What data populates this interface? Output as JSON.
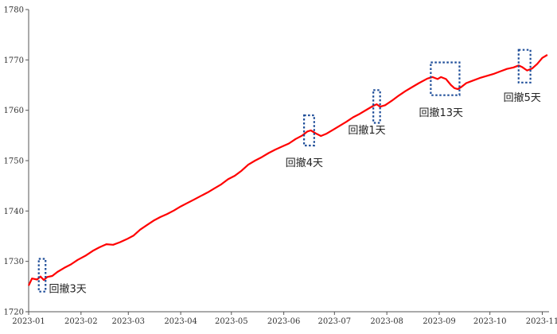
{
  "chart_data": {
    "type": "line",
    "title": "",
    "xlabel": "",
    "ylabel": "",
    "ylim": [
      1720,
      1780
    ],
    "yticks": [
      1720,
      1730,
      1740,
      1750,
      1760,
      1770,
      1780
    ],
    "xlim": [
      "2023-01-01",
      "2023-11-05"
    ],
    "xticks": [
      "2023-01",
      "2023-02",
      "2023-03",
      "2023-04",
      "2023-05",
      "2023-06",
      "2023-07",
      "2023-08",
      "2023-09",
      "2023-10",
      "2023-11"
    ],
    "grid": false,
    "legend": "none",
    "colors": {
      "line": "#ff0000",
      "box": "#1f4e99",
      "axis": "#555555"
    },
    "series": [
      {
        "points": [
          [
            "2023-01-01",
            1725.2
          ],
          [
            "2023-01-03",
            1726.6
          ],
          [
            "2023-01-06",
            1726.4
          ],
          [
            "2023-01-08",
            1727.0
          ],
          [
            "2023-01-10",
            1726.3
          ],
          [
            "2023-01-12",
            1726.9
          ],
          [
            "2023-01-15",
            1727.1
          ],
          [
            "2023-01-18",
            1727.9
          ],
          [
            "2023-01-22",
            1728.7
          ],
          [
            "2023-01-26",
            1729.4
          ],
          [
            "2023-01-30",
            1730.3
          ],
          [
            "2023-02-04",
            1731.2
          ],
          [
            "2023-02-08",
            1732.1
          ],
          [
            "2023-02-12",
            1732.8
          ],
          [
            "2023-02-16",
            1733.4
          ],
          [
            "2023-02-20",
            1733.3
          ],
          [
            "2023-02-24",
            1733.8
          ],
          [
            "2023-02-28",
            1734.4
          ],
          [
            "2023-03-04",
            1735.1
          ],
          [
            "2023-03-08",
            1736.3
          ],
          [
            "2023-03-12",
            1737.2
          ],
          [
            "2023-03-16",
            1738.1
          ],
          [
            "2023-03-20",
            1738.8
          ],
          [
            "2023-03-24",
            1739.4
          ],
          [
            "2023-03-28",
            1740.1
          ],
          [
            "2023-04-01",
            1740.9
          ],
          [
            "2023-04-05",
            1741.6
          ],
          [
            "2023-04-09",
            1742.3
          ],
          [
            "2023-04-13",
            1743.0
          ],
          [
            "2023-04-17",
            1743.7
          ],
          [
            "2023-04-21",
            1744.5
          ],
          [
            "2023-04-25",
            1745.3
          ],
          [
            "2023-04-29",
            1746.3
          ],
          [
            "2023-05-03",
            1747.0
          ],
          [
            "2023-05-07",
            1748.0
          ],
          [
            "2023-05-11",
            1749.2
          ],
          [
            "2023-05-15",
            1750.0
          ],
          [
            "2023-05-19",
            1750.7
          ],
          [
            "2023-05-23",
            1751.5
          ],
          [
            "2023-05-27",
            1752.2
          ],
          [
            "2023-05-31",
            1752.8
          ],
          [
            "2023-06-04",
            1753.4
          ],
          [
            "2023-06-08",
            1754.3
          ],
          [
            "2023-06-12",
            1755.0
          ],
          [
            "2023-06-15",
            1755.8
          ],
          [
            "2023-06-17",
            1756.0
          ],
          [
            "2023-06-20",
            1755.4
          ],
          [
            "2023-06-23",
            1754.9
          ],
          [
            "2023-06-26",
            1755.3
          ],
          [
            "2023-06-30",
            1756.1
          ],
          [
            "2023-07-04",
            1756.9
          ],
          [
            "2023-07-08",
            1757.7
          ],
          [
            "2023-07-12",
            1758.6
          ],
          [
            "2023-07-16",
            1759.3
          ],
          [
            "2023-07-20",
            1760.1
          ],
          [
            "2023-07-24",
            1760.9
          ],
          [
            "2023-07-26",
            1761.2
          ],
          [
            "2023-07-28",
            1760.7
          ],
          [
            "2023-07-31",
            1761.0
          ],
          [
            "2023-08-04",
            1761.9
          ],
          [
            "2023-08-08",
            1762.9
          ],
          [
            "2023-08-12",
            1763.8
          ],
          [
            "2023-08-16",
            1764.6
          ],
          [
            "2023-08-20",
            1765.4
          ],
          [
            "2023-08-25",
            1766.3
          ],
          [
            "2023-08-28",
            1766.6
          ],
          [
            "2023-08-31",
            1766.2
          ],
          [
            "2023-09-02",
            1766.6
          ],
          [
            "2023-09-05",
            1766.2
          ],
          [
            "2023-09-08",
            1765.0
          ],
          [
            "2023-09-10",
            1764.4
          ],
          [
            "2023-09-12",
            1764.2
          ],
          [
            "2023-09-14",
            1764.6
          ],
          [
            "2023-09-17",
            1765.4
          ],
          [
            "2023-09-21",
            1765.9
          ],
          [
            "2023-09-25",
            1766.4
          ],
          [
            "2023-09-29",
            1766.8
          ],
          [
            "2023-10-03",
            1767.2
          ],
          [
            "2023-10-07",
            1767.7
          ],
          [
            "2023-10-11",
            1768.2
          ],
          [
            "2023-10-15",
            1768.5
          ],
          [
            "2023-10-18",
            1768.9
          ],
          [
            "2023-10-20",
            1768.6
          ],
          [
            "2023-10-23",
            1767.9
          ],
          [
            "2023-10-26",
            1768.3
          ],
          [
            "2023-10-29",
            1769.2
          ],
          [
            "2023-11-01",
            1770.4
          ],
          [
            "2023-11-04",
            1771.0
          ]
        ]
      }
    ],
    "annotations": [
      {
        "label": "回撤3天",
        "box_x": [
          "2023-01-07",
          "2023-01-11"
        ],
        "box_y": [
          1724.0,
          1730.5
        ],
        "label_at": [
          "2023-01-13",
          1724.5
        ]
      },
      {
        "label": "回撤4天",
        "box_x": [
          "2023-06-13",
          "2023-06-19"
        ],
        "box_y": [
          1753.0,
          1759.0
        ],
        "label_at": [
          "2023-06-02",
          1749.5
        ]
      },
      {
        "label": "回撤1天",
        "box_x": [
          "2023-07-24",
          "2023-07-28"
        ],
        "box_y": [
          1757.5,
          1764.0
        ],
        "label_at": [
          "2023-07-09",
          1756.0
        ]
      },
      {
        "label": "回撤13天",
        "box_x": [
          "2023-08-27",
          "2023-09-13"
        ],
        "box_y": [
          1763.0,
          1769.5
        ],
        "label_at": [
          "2023-08-20",
          1759.5
        ]
      },
      {
        "label": "回撤5天",
        "box_x": [
          "2023-10-18",
          "2023-10-25"
        ],
        "box_y": [
          1765.5,
          1772.0
        ],
        "label_at": [
          "2023-10-09",
          1762.5
        ]
      }
    ]
  }
}
